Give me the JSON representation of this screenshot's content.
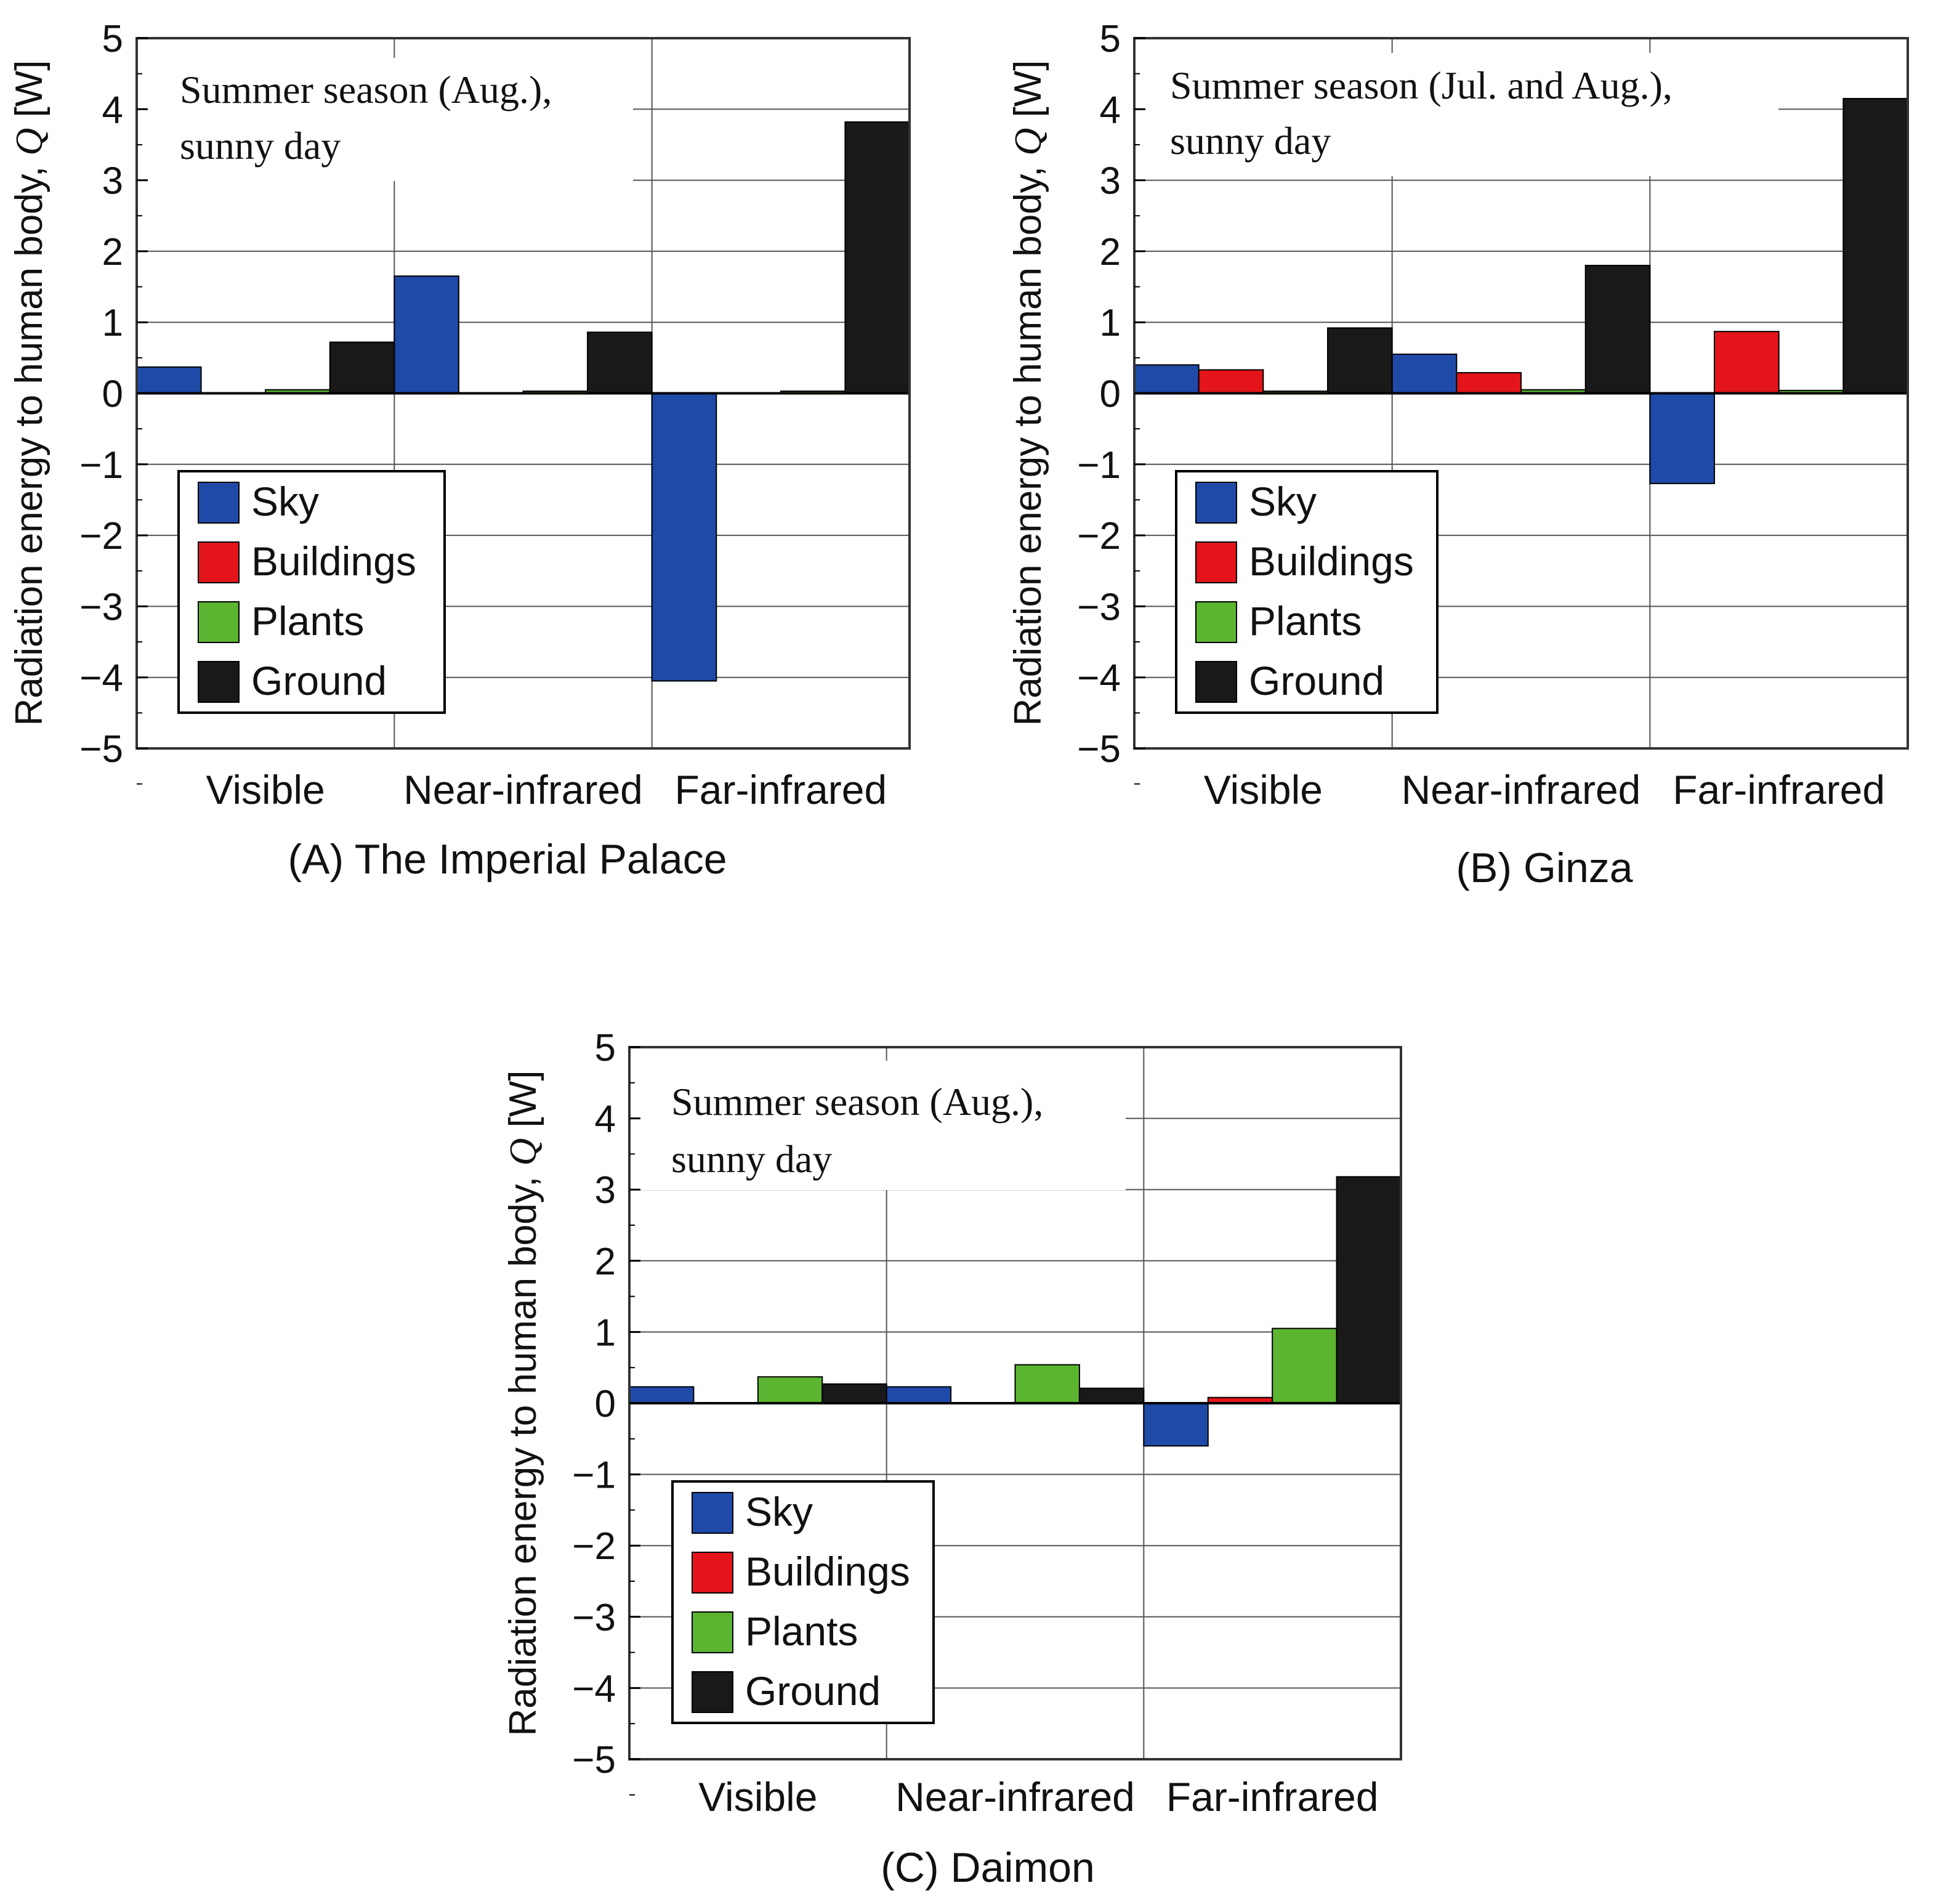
{
  "colors": {
    "Sky": "#1f4aa8",
    "Buildings": "#e3151b",
    "Plants": "#5cb530",
    "Ground": "#191919",
    "grid": "#555555",
    "frame": "#333333"
  },
  "chart_data": [
    {
      "type": "bar",
      "panel_caption": "(A) The Imperial Palace",
      "annotation": [
        "Summer season (Aug.),",
        "sunny day"
      ],
      "ylabel_parts": [
        "Radiation energy to human body, ",
        "Q",
        " [W]"
      ],
      "ylim": [
        -5,
        5
      ],
      "yticks": [
        5,
        4,
        3,
        2,
        1,
        0,
        -1,
        -2,
        -3,
        -4,
        -5
      ],
      "ytick_labels": [
        "5",
        "4",
        "3",
        "2",
        "1",
        "0",
        "−1",
        "−2",
        "−3",
        "−4",
        "−5"
      ],
      "grid": true,
      "legend_position": "lower-left",
      "categories": [
        "Visible",
        "Near-infrared",
        "Far-infrared"
      ],
      "series": [
        {
          "name": "Sky",
          "values": [
            0.37,
            1.65,
            -4.05
          ]
        },
        {
          "name": "Buildings",
          "values": [
            0,
            0,
            0
          ]
        },
        {
          "name": "Plants",
          "values": [
            0.05,
            0.03,
            0.03
          ]
        },
        {
          "name": "Ground",
          "values": [
            0.72,
            0.86,
            3.82
          ]
        }
      ]
    },
    {
      "type": "bar",
      "panel_caption": "(B) Ginza",
      "annotation": [
        "Summer season (Jul. and Aug.),",
        "sunny day"
      ],
      "ylabel_parts": [
        "Radiation energy to human body, ",
        "Q",
        " [W]"
      ],
      "ylim": [
        -5,
        5
      ],
      "yticks": [
        5,
        4,
        3,
        2,
        1,
        0,
        -1,
        -2,
        -3,
        -4,
        -5
      ],
      "ytick_labels": [
        "5",
        "4",
        "3",
        "2",
        "1",
        "0",
        "−1",
        "−2",
        "−3",
        "−4",
        "−5"
      ],
      "grid": true,
      "legend_position": "lower-left",
      "categories": [
        "Visible",
        "Near-infrared",
        "Far-infrared"
      ],
      "series": [
        {
          "name": "Sky",
          "values": [
            0.4,
            0.55,
            -1.27
          ]
        },
        {
          "name": "Buildings",
          "values": [
            0.33,
            0.29,
            0.87
          ]
        },
        {
          "name": "Plants",
          "values": [
            0.03,
            0.05,
            0.04
          ]
        },
        {
          "name": "Ground",
          "values": [
            0.92,
            1.8,
            4.15
          ]
        }
      ]
    },
    {
      "type": "bar",
      "panel_caption": "(C) Daimon",
      "annotation": [
        "Summer season (Aug.),",
        "sunny day"
      ],
      "ylabel_parts": [
        "Radiation energy to human body, ",
        "Q",
        " [W]"
      ],
      "ylim": [
        -5,
        5
      ],
      "yticks": [
        5,
        4,
        3,
        2,
        1,
        0,
        -1,
        -2,
        -3,
        -4,
        -5
      ],
      "ytick_labels": [
        "5",
        "4",
        "3",
        "2",
        "1",
        "0",
        "−1",
        "−2",
        "−3",
        "−4",
        "−5"
      ],
      "grid": true,
      "legend_position": "lower-left",
      "categories": [
        "Visible",
        "Near-infrared",
        "Far-infrared"
      ],
      "series": [
        {
          "name": "Sky",
          "values": [
            0.23,
            0.23,
            -0.6
          ]
        },
        {
          "name": "Buildings",
          "values": [
            0,
            0,
            0.08
          ]
        },
        {
          "name": "Plants",
          "values": [
            0.37,
            0.54,
            1.05
          ]
        },
        {
          "name": "Ground",
          "values": [
            0.27,
            0.21,
            3.18
          ]
        }
      ]
    }
  ]
}
